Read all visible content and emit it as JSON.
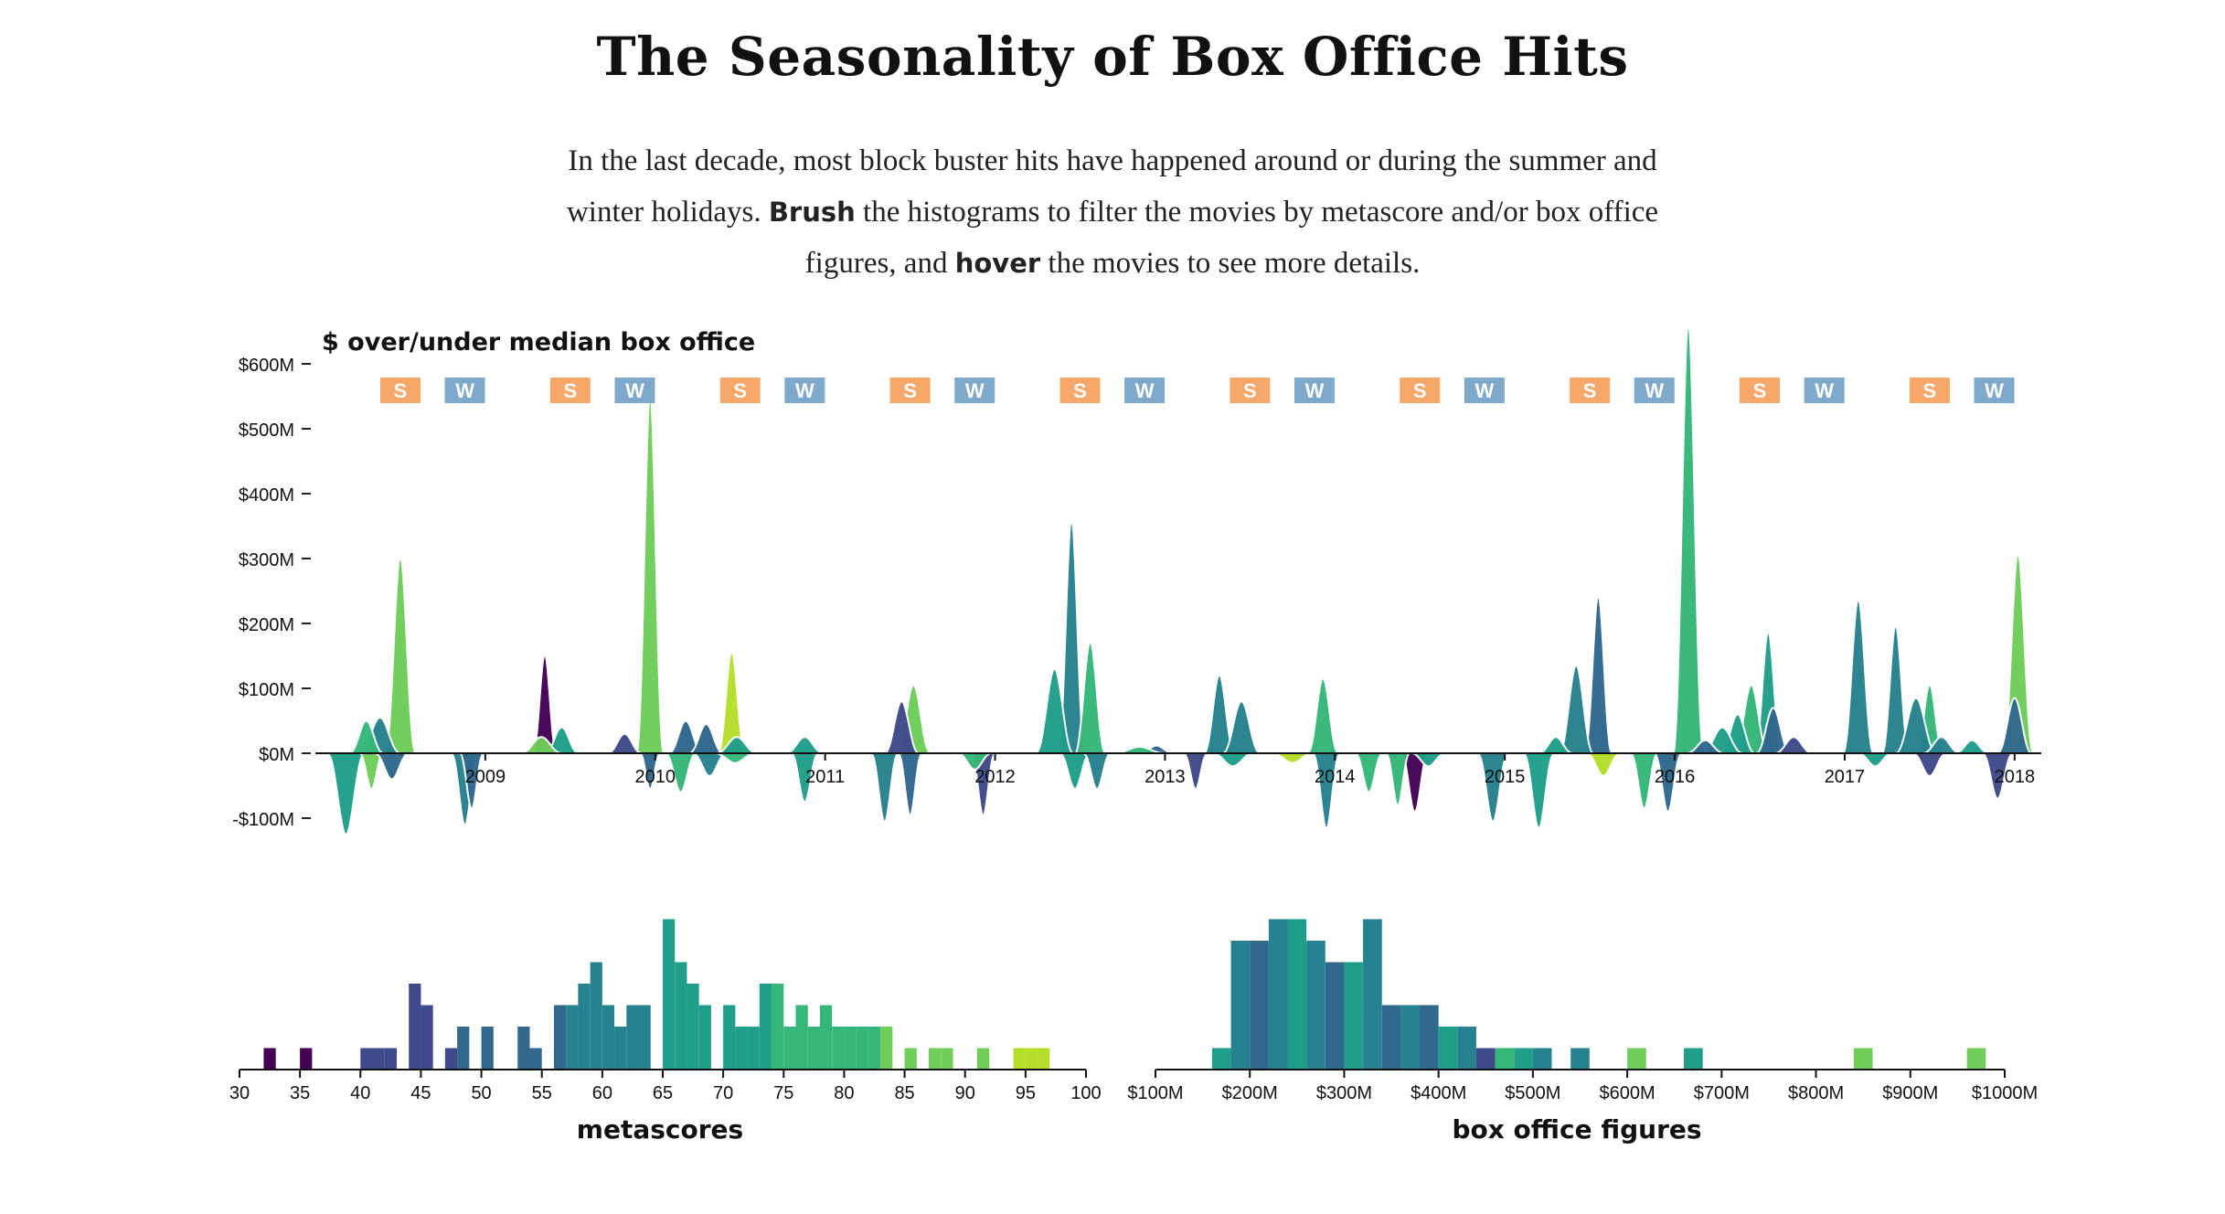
{
  "title": "The Seasonality of Box Office Hits",
  "intro": {
    "p1": "In the last decade, most block buster hits have happened around or during the summer and winter holidays. ",
    "brush": "Brush",
    "p2": " the histograms to filter the movies by metascore and/or box office figures, and ",
    "hover": "hover",
    "p3": " the movies to see more details."
  },
  "colors": {
    "summer": "#f6a86b",
    "winter": "#7fa9cb",
    "palette": [
      "#440154",
      "#3e4a89",
      "#31688e",
      "#26828e",
      "#1f9e89",
      "#35b779",
      "#6ece58",
      "#b5de2b"
    ]
  },
  "chart_data": [
    {
      "type": "area",
      "name": "timeline",
      "title": "$ over/under median box office",
      "ylim": [
        -130,
        660
      ],
      "y_ticks": [
        {
          "value": 600,
          "label": "$600M"
        },
        {
          "value": 500,
          "label": "$500M"
        },
        {
          "value": 400,
          "label": "$400M"
        },
        {
          "value": 300,
          "label": "$300M"
        },
        {
          "value": 200,
          "label": "$200M"
        },
        {
          "value": 100,
          "label": "$100M"
        },
        {
          "value": 0,
          "label": "$0M"
        },
        {
          "value": -100,
          "label": "-$100M"
        }
      ],
      "x_range": [
        2008.0,
        2018.13
      ],
      "x_ticks": [
        "2009",
        "2010",
        "2011",
        "2012",
        "2013",
        "2014",
        "2015",
        "2016",
        "2017",
        "2018"
      ],
      "season_markers": [
        {
          "label": "S",
          "t": 2008.5
        },
        {
          "label": "W",
          "t": 2008.88
        },
        {
          "label": "S",
          "t": 2009.5
        },
        {
          "label": "W",
          "t": 2009.88
        },
        {
          "label": "S",
          "t": 2010.5
        },
        {
          "label": "W",
          "t": 2010.88
        },
        {
          "label": "S",
          "t": 2011.5
        },
        {
          "label": "W",
          "t": 2011.88
        },
        {
          "label": "S",
          "t": 2012.5
        },
        {
          "label": "W",
          "t": 2012.88
        },
        {
          "label": "S",
          "t": 2013.5
        },
        {
          "label": "W",
          "t": 2013.88
        },
        {
          "label": "S",
          "t": 2014.5
        },
        {
          "label": "W",
          "t": 2014.88
        },
        {
          "label": "S",
          "t": 2015.5
        },
        {
          "label": "W",
          "t": 2015.88
        },
        {
          "label": "S",
          "t": 2016.5
        },
        {
          "label": "W",
          "t": 2016.88
        },
        {
          "label": "S",
          "t": 2017.5
        },
        {
          "label": "W",
          "t": 2017.88
        }
      ],
      "movies": [
        {
          "t": 2008.18,
          "v": -125,
          "w": 0.11,
          "c": 4
        },
        {
          "t": 2008.3,
          "v": 50,
          "w": 0.1,
          "c": 5
        },
        {
          "t": 2008.33,
          "v": -55,
          "w": 0.07,
          "c": 6
        },
        {
          "t": 2008.38,
          "v": 55,
          "w": 0.12,
          "c": 3
        },
        {
          "t": 2008.5,
          "v": 300,
          "w": 0.09,
          "c": 6
        },
        {
          "t": 2008.45,
          "v": -40,
          "w": 0.1,
          "c": 2
        },
        {
          "t": 2008.88,
          "v": -110,
          "w": 0.08,
          "c": 3
        },
        {
          "t": 2008.92,
          "v": -85,
          "w": 0.07,
          "c": 2
        },
        {
          "t": 2009.35,
          "v": 150,
          "w": 0.07,
          "c": 0
        },
        {
          "t": 2009.33,
          "v": 25,
          "w": 0.12,
          "c": 6
        },
        {
          "t": 2009.45,
          "v": 40,
          "w": 0.1,
          "c": 4
        },
        {
          "t": 2009.82,
          "v": 30,
          "w": 0.1,
          "c": 1
        },
        {
          "t": 2009.97,
          "v": 545,
          "w": 0.08,
          "c": 6
        },
        {
          "t": 2009.97,
          "v": -55,
          "w": 0.06,
          "c": 2
        },
        {
          "t": 2010.15,
          "v": -60,
          "w": 0.09,
          "c": 5
        },
        {
          "t": 2010.18,
          "v": 50,
          "w": 0.1,
          "c": 2
        },
        {
          "t": 2010.3,
          "v": 45,
          "w": 0.1,
          "c": 2
        },
        {
          "t": 2010.32,
          "v": -35,
          "w": 0.1,
          "c": 3
        },
        {
          "t": 2010.45,
          "v": 155,
          "w": 0.08,
          "c": 7
        },
        {
          "t": 2010.48,
          "v": 25,
          "w": 0.12,
          "c": 4
        },
        {
          "t": 2010.47,
          "v": -15,
          "w": 0.12,
          "c": 5
        },
        {
          "t": 2010.88,
          "v": 25,
          "w": 0.11,
          "c": 4
        },
        {
          "t": 2010.88,
          "v": -75,
          "w": 0.08,
          "c": 4
        },
        {
          "t": 2011.35,
          "v": -105,
          "w": 0.08,
          "c": 3
        },
        {
          "t": 2011.45,
          "v": 80,
          "w": 0.1,
          "c": 1
        },
        {
          "t": 2011.52,
          "v": 105,
          "w": 0.1,
          "c": 6
        },
        {
          "t": 2011.5,
          "v": -95,
          "w": 0.07,
          "c": 2
        },
        {
          "t": 2011.88,
          "v": -25,
          "w": 0.1,
          "c": 5
        },
        {
          "t": 2011.93,
          "v": -95,
          "w": 0.07,
          "c": 1
        },
        {
          "t": 2012.35,
          "v": 130,
          "w": 0.11,
          "c": 4
        },
        {
          "t": 2012.45,
          "v": 355,
          "w": 0.08,
          "c": 3
        },
        {
          "t": 2012.47,
          "v": -55,
          "w": 0.09,
          "c": 4
        },
        {
          "t": 2012.56,
          "v": 170,
          "w": 0.09,
          "c": 5
        },
        {
          "t": 2012.6,
          "v": -55,
          "w": 0.08,
          "c": 3
        },
        {
          "t": 2012.85,
          "v": 10,
          "w": 0.15,
          "c": 5
        },
        {
          "t": 2012.95,
          "v": 12,
          "w": 0.1,
          "c": 2
        },
        {
          "t": 2013.18,
          "v": -55,
          "w": 0.07,
          "c": 1
        },
        {
          "t": 2013.32,
          "v": 120,
          "w": 0.09,
          "c": 3
        },
        {
          "t": 2013.45,
          "v": 80,
          "w": 0.11,
          "c": 3
        },
        {
          "t": 2013.4,
          "v": -20,
          "w": 0.12,
          "c": 4
        },
        {
          "t": 2013.75,
          "v": -15,
          "w": 0.12,
          "c": 7
        },
        {
          "t": 2013.93,
          "v": 115,
          "w": 0.09,
          "c": 5
        },
        {
          "t": 2013.95,
          "v": -115,
          "w": 0.08,
          "c": 3
        },
        {
          "t": 2014.2,
          "v": -60,
          "w": 0.08,
          "c": 5
        },
        {
          "t": 2014.37,
          "v": -80,
          "w": 0.07,
          "c": 5
        },
        {
          "t": 2014.47,
          "v": -90,
          "w": 0.08,
          "c": 0
        },
        {
          "t": 2014.55,
          "v": -20,
          "w": 0.1,
          "c": 4
        },
        {
          "t": 2014.93,
          "v": -105,
          "w": 0.09,
          "c": 3
        },
        {
          "t": 2015.2,
          "v": -115,
          "w": 0.09,
          "c": 4
        },
        {
          "t": 2015.3,
          "v": 25,
          "w": 0.1,
          "c": 4
        },
        {
          "t": 2015.42,
          "v": 135,
          "w": 0.1,
          "c": 3
        },
        {
          "t": 2015.55,
          "v": 240,
          "w": 0.08,
          "c": 2
        },
        {
          "t": 2015.58,
          "v": -35,
          "w": 0.1,
          "c": 7
        },
        {
          "t": 2015.82,
          "v": -85,
          "w": 0.08,
          "c": 5
        },
        {
          "t": 2015.96,
          "v": -90,
          "w": 0.08,
          "c": 2
        },
        {
          "t": 2016.08,
          "v": 655,
          "w": 0.09,
          "c": 5
        },
        {
          "t": 2016.18,
          "v": 20,
          "w": 0.11,
          "c": 2
        },
        {
          "t": 2016.28,
          "v": 40,
          "w": 0.12,
          "c": 4
        },
        {
          "t": 2016.37,
          "v": 60,
          "w": 0.1,
          "c": 4
        },
        {
          "t": 2016.45,
          "v": 105,
          "w": 0.1,
          "c": 5
        },
        {
          "t": 2016.55,
          "v": 185,
          "w": 0.08,
          "c": 4
        },
        {
          "t": 2016.58,
          "v": 70,
          "w": 0.1,
          "c": 2
        },
        {
          "t": 2016.7,
          "v": 25,
          "w": 0.11,
          "c": 1
        },
        {
          "t": 2017.08,
          "v": 235,
          "w": 0.09,
          "c": 3
        },
        {
          "t": 2017.18,
          "v": -20,
          "w": 0.1,
          "c": 4
        },
        {
          "t": 2017.3,
          "v": 195,
          "w": 0.08,
          "c": 3
        },
        {
          "t": 2017.42,
          "v": 85,
          "w": 0.12,
          "c": 3
        },
        {
          "t": 2017.5,
          "v": 105,
          "w": 0.08,
          "c": 5
        },
        {
          "t": 2017.57,
          "v": 25,
          "w": 0.11,
          "c": 3
        },
        {
          "t": 2017.5,
          "v": -35,
          "w": 0.1,
          "c": 1
        },
        {
          "t": 2017.75,
          "v": 20,
          "w": 0.1,
          "c": 4
        },
        {
          "t": 2017.9,
          "v": -70,
          "w": 0.09,
          "c": 1
        },
        {
          "t": 2018.02,
          "v": 305,
          "w": 0.09,
          "c": 6
        },
        {
          "t": 2018.0,
          "v": 85,
          "w": 0.1,
          "c": 2
        }
      ]
    },
    {
      "type": "bar",
      "name": "metascores",
      "xlabel": "metascores",
      "x_range": [
        30,
        100
      ],
      "x_ticks": [
        30,
        35,
        40,
        45,
        50,
        55,
        60,
        65,
        70,
        75,
        80,
        85,
        90,
        95,
        100
      ],
      "bin_width": 1,
      "bins": [
        {
          "x": 32,
          "count": 1
        },
        {
          "x": 35,
          "count": 1
        },
        {
          "x": 40,
          "count": 1
        },
        {
          "x": 41,
          "count": 1
        },
        {
          "x": 42,
          "count": 1
        },
        {
          "x": 44,
          "count": 4
        },
        {
          "x": 45,
          "count": 3
        },
        {
          "x": 47,
          "count": 1
        },
        {
          "x": 48,
          "count": 2
        },
        {
          "x": 50,
          "count": 2
        },
        {
          "x": 53,
          "count": 2
        },
        {
          "x": 54,
          "count": 1
        },
        {
          "x": 56,
          "count": 3
        },
        {
          "x": 57,
          "count": 3
        },
        {
          "x": 58,
          "count": 4
        },
        {
          "x": 59,
          "count": 5
        },
        {
          "x": 60,
          "count": 3
        },
        {
          "x": 61,
          "count": 2
        },
        {
          "x": 62,
          "count": 3
        },
        {
          "x": 63,
          "count": 3
        },
        {
          "x": 65,
          "count": 7
        },
        {
          "x": 66,
          "count": 5
        },
        {
          "x": 67,
          "count": 4
        },
        {
          "x": 68,
          "count": 3
        },
        {
          "x": 70,
          "count": 3
        },
        {
          "x": 71,
          "count": 2
        },
        {
          "x": 72,
          "count": 2
        },
        {
          "x": 73,
          "count": 4
        },
        {
          "x": 74,
          "count": 4
        },
        {
          "x": 75,
          "count": 2
        },
        {
          "x": 76,
          "count": 3
        },
        {
          "x": 77,
          "count": 2
        },
        {
          "x": 78,
          "count": 3
        },
        {
          "x": 79,
          "count": 2
        },
        {
          "x": 80,
          "count": 2
        },
        {
          "x": 81,
          "count": 2
        },
        {
          "x": 82,
          "count": 2
        },
        {
          "x": 83,
          "count": 2
        },
        {
          "x": 85,
          "count": 1
        },
        {
          "x": 87,
          "count": 1
        },
        {
          "x": 88,
          "count": 1
        },
        {
          "x": 91,
          "count": 1
        },
        {
          "x": 94,
          "count": 1
        },
        {
          "x": 95,
          "count": 1
        },
        {
          "x": 96,
          "count": 1
        }
      ]
    },
    {
      "type": "bar",
      "name": "box_office",
      "xlabel": "box office figures",
      "x_range": [
        100,
        1000
      ],
      "x_ticks": [
        "$100M",
        "$200M",
        "$300M",
        "$400M",
        "$500M",
        "$600M",
        "$700M",
        "$800M",
        "$900M",
        "$1000M"
      ],
      "bin_width": 20,
      "bins": [
        {
          "x": 160,
          "count": 1,
          "c": 4
        },
        {
          "x": 180,
          "count": 6,
          "c": 3
        },
        {
          "x": 200,
          "count": 6,
          "c": 2
        },
        {
          "x": 220,
          "count": 7,
          "c": 3
        },
        {
          "x": 240,
          "count": 7,
          "c": 4
        },
        {
          "x": 260,
          "count": 6,
          "c": 3
        },
        {
          "x": 280,
          "count": 5,
          "c": 2
        },
        {
          "x": 300,
          "count": 5,
          "c": 4
        },
        {
          "x": 320,
          "count": 7,
          "c": 3
        },
        {
          "x": 340,
          "count": 3,
          "c": 2
        },
        {
          "x": 360,
          "count": 3,
          "c": 3
        },
        {
          "x": 380,
          "count": 3,
          "c": 2
        },
        {
          "x": 400,
          "count": 2,
          "c": 4
        },
        {
          "x": 420,
          "count": 2,
          "c": 3
        },
        {
          "x": 440,
          "count": 1,
          "c": 1
        },
        {
          "x": 460,
          "count": 1,
          "c": 5
        },
        {
          "x": 480,
          "count": 1,
          "c": 4
        },
        {
          "x": 500,
          "count": 1,
          "c": 3
        },
        {
          "x": 540,
          "count": 1,
          "c": 3
        },
        {
          "x": 600,
          "count": 1,
          "c": 6
        },
        {
          "x": 660,
          "count": 1,
          "c": 4
        },
        {
          "x": 840,
          "count": 1,
          "c": 6
        },
        {
          "x": 960,
          "count": 1,
          "c": 6
        }
      ]
    }
  ]
}
